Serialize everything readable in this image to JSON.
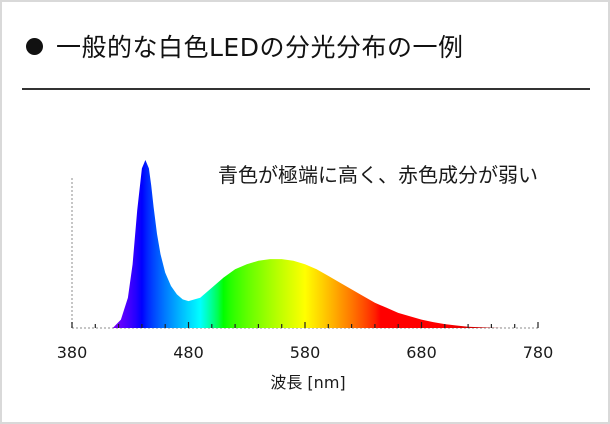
{
  "header": {
    "title": "一般的な白色LEDの分光分布の一例"
  },
  "chart_data": {
    "type": "area",
    "title": "一般的な白色LEDの分光分布の一例",
    "annotation": "青色が極端に高く、赤色成分が弱い",
    "xlabel": "波長 [nm]",
    "ylabel": "",
    "xlim": [
      380,
      780
    ],
    "ylim": [
      0,
      1
    ],
    "x_ticks": [
      380,
      480,
      580,
      680,
      780
    ],
    "x_tick_labels": [
      "380",
      "480",
      "580",
      "680",
      "780"
    ],
    "grid": false,
    "fill": "visible-spectrum gradient",
    "x": [
      415,
      422,
      428,
      432,
      436,
      440,
      443,
      446,
      448,
      450,
      453,
      456,
      460,
      465,
      470,
      475,
      480,
      490,
      500,
      510,
      520,
      530,
      540,
      550,
      560,
      570,
      580,
      590,
      600,
      610,
      620,
      630,
      640,
      650,
      660,
      670,
      680,
      690,
      700,
      710,
      720,
      730,
      740,
      750
    ],
    "y": [
      0.0,
      0.05,
      0.18,
      0.38,
      0.7,
      0.95,
      1.0,
      0.95,
      0.85,
      0.72,
      0.56,
      0.44,
      0.33,
      0.25,
      0.2,
      0.17,
      0.16,
      0.18,
      0.24,
      0.3,
      0.35,
      0.38,
      0.4,
      0.41,
      0.41,
      0.4,
      0.38,
      0.35,
      0.31,
      0.27,
      0.23,
      0.19,
      0.15,
      0.12,
      0.09,
      0.07,
      0.05,
      0.035,
      0.023,
      0.015,
      0.008,
      0.004,
      0.001,
      0.0
    ]
  }
}
